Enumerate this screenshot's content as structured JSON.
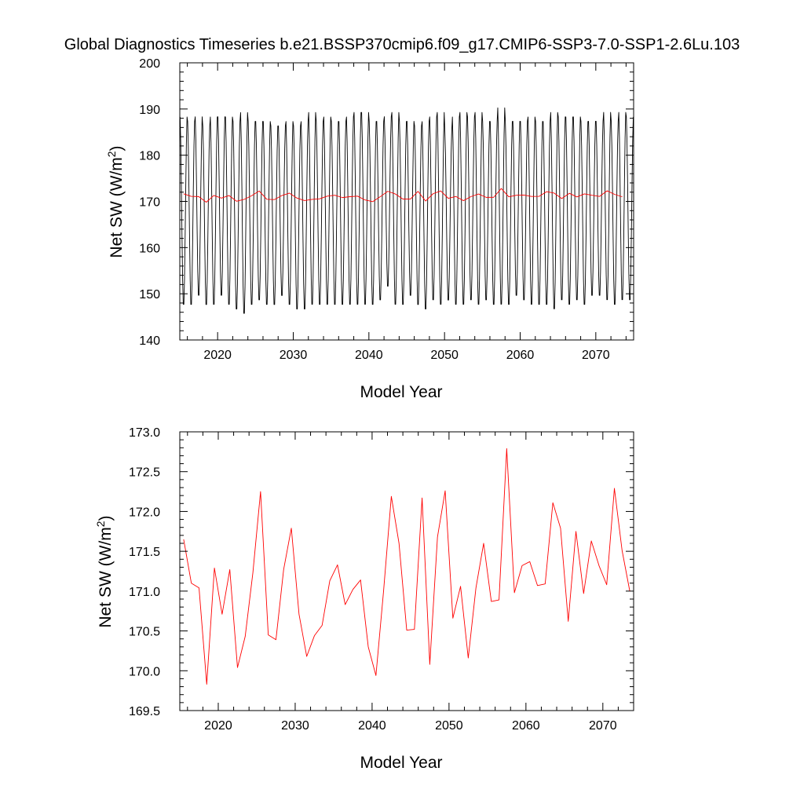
{
  "title": "Global Diagnostics Timeseries b.e21.BSSP370cmip6.f09_g17.CMIP6-SSP3-7.0-SSP1-2.6Lu.103",
  "colors": {
    "monthly": "#000000",
    "annual": "#ff0000",
    "axis": "#000000"
  },
  "chart_data": [
    {
      "type": "line",
      "panel": "top",
      "xlabel": "Model Year",
      "ylabel_main": "Net SW (W/m",
      "ylabel_sup": "2",
      "ylabel_close": ")",
      "xlim": [
        2015,
        2075
      ],
      "ylim": [
        140,
        200
      ],
      "x_ticks": [
        2020,
        2030,
        2040,
        2050,
        2060,
        2070
      ],
      "x_tick_labels": [
        "2020",
        "2030",
        "2040",
        "2050",
        "2060",
        "2070"
      ],
      "y_ticks": [
        140,
        150,
        160,
        170,
        180,
        190,
        200
      ],
      "y_tick_labels": [
        "140",
        "150",
        "160",
        "170",
        "180",
        "190",
        "200"
      ],
      "series": [
        {
          "name": "monthly",
          "color": "#000000",
          "start_year": 2015.04,
          "years": 60,
          "annual_max": [
            189,
            188,
            189,
            187,
            189,
            189,
            189,
            188,
            190,
            188,
            188,
            188,
            187,
            187,
            188,
            187,
            188,
            190,
            188,
            189,
            188,
            188,
            189,
            190,
            190,
            188,
            188,
            189,
            190,
            188,
            188,
            187,
            188,
            189,
            190,
            186,
            189,
            190,
            189,
            190,
            188,
            188,
            191,
            188,
            188,
            188,
            189,
            188,
            188,
            190,
            189,
            189,
            189,
            188,
            188,
            188,
            190,
            188,
            190,
            189
          ],
          "annual_min": [
            147,
            147,
            149,
            147,
            147,
            149,
            147,
            146,
            145,
            147,
            148,
            147,
            147,
            149,
            147,
            146,
            146,
            147,
            147,
            147,
            147,
            147,
            147,
            147,
            147,
            147,
            148,
            151,
            147,
            147,
            149,
            147,
            146,
            148,
            147,
            148,
            147,
            147,
            148,
            147,
            148,
            147,
            147,
            147,
            149,
            148,
            147,
            147,
            147,
            146,
            148,
            147,
            148,
            147,
            149,
            149,
            148,
            147,
            148,
            148
          ]
        },
        {
          "name": "annual mean",
          "color": "#ff0000",
          "x": [
            2015.5,
            2016.5,
            2017.5,
            2018.5,
            2019.5,
            2020.5,
            2021.5,
            2022.5,
            2023.5,
            2024.5,
            2025.5,
            2026.5,
            2027.5,
            2028.5,
            2029.5,
            2030.5,
            2031.5,
            2032.5,
            2033.5,
            2034.5,
            2035.5,
            2036.5,
            2037.5,
            2038.5,
            2039.5,
            2040.5,
            2041.5,
            2042.5,
            2043.5,
            2044.5,
            2045.5,
            2046.5,
            2047.5,
            2048.5,
            2049.5,
            2050.5,
            2051.5,
            2052.5,
            2053.5,
            2054.5,
            2055.5,
            2056.5,
            2057.5,
            2058.5,
            2059.5,
            2060.5,
            2061.5,
            2062.5,
            2063.5,
            2064.5,
            2065.5,
            2066.5,
            2067.5,
            2068.5,
            2069.5,
            2070.5,
            2071.5,
            2072.5,
            2073.5
          ],
          "values": [
            171.65,
            171.1,
            171.04,
            169.83,
            171.29,
            170.71,
            171.27,
            170.04,
            170.43,
            171.23,
            172.25,
            170.45,
            170.39,
            171.27,
            171.79,
            170.71,
            170.18,
            170.44,
            170.57,
            171.13,
            171.33,
            170.83,
            171.02,
            171.14,
            170.3,
            169.94,
            171.01,
            172.19,
            171.6,
            170.51,
            170.52,
            172.17,
            170.08,
            171.68,
            172.26,
            170.66,
            171.06,
            170.16,
            171.04,
            171.6,
            170.87,
            170.89,
            172.79,
            170.98,
            171.32,
            171.37,
            171.07,
            171.09,
            172.11,
            171.79,
            170.62,
            171.75,
            170.97,
            171.63,
            171.32,
            171.08,
            172.29,
            171.51,
            171.0
          ]
        }
      ]
    },
    {
      "type": "line",
      "panel": "bottom",
      "xlabel": "Model Year",
      "ylabel_main": "Net SW (W/m",
      "ylabel_sup": "2",
      "ylabel_close": ")",
      "xlim": [
        2015,
        2074
      ],
      "ylim": [
        169.5,
        173.0
      ],
      "x_ticks": [
        2020,
        2030,
        2040,
        2050,
        2060,
        2070
      ],
      "x_tick_labels": [
        "2020",
        "2030",
        "2040",
        "2050",
        "2060",
        "2070"
      ],
      "y_ticks": [
        169.5,
        170.0,
        170.5,
        171.0,
        171.5,
        172.0,
        172.5,
        173.0
      ],
      "y_tick_labels": [
        "169.5",
        "170.0",
        "170.5",
        "171.0",
        "171.5",
        "172.0",
        "172.5",
        "173.0"
      ],
      "series": [
        {
          "name": "annual mean",
          "color": "#ff0000",
          "x": [
            2015.5,
            2016.5,
            2017.5,
            2018.5,
            2019.5,
            2020.5,
            2021.5,
            2022.5,
            2023.5,
            2024.5,
            2025.5,
            2026.5,
            2027.5,
            2028.5,
            2029.5,
            2030.5,
            2031.5,
            2032.5,
            2033.5,
            2034.5,
            2035.5,
            2036.5,
            2037.5,
            2038.5,
            2039.5,
            2040.5,
            2041.5,
            2042.5,
            2043.5,
            2044.5,
            2045.5,
            2046.5,
            2047.5,
            2048.5,
            2049.5,
            2050.5,
            2051.5,
            2052.5,
            2053.5,
            2054.5,
            2055.5,
            2056.5,
            2057.5,
            2058.5,
            2059.5,
            2060.5,
            2061.5,
            2062.5,
            2063.5,
            2064.5,
            2065.5,
            2066.5,
            2067.5,
            2068.5,
            2069.5,
            2070.5,
            2071.5,
            2072.5,
            2073.5
          ],
          "values": [
            171.65,
            171.1,
            171.04,
            169.83,
            171.29,
            170.71,
            171.27,
            170.04,
            170.43,
            171.23,
            172.25,
            170.45,
            170.39,
            171.27,
            171.79,
            170.71,
            170.18,
            170.44,
            170.57,
            171.13,
            171.33,
            170.83,
            171.02,
            171.14,
            170.3,
            169.94,
            171.01,
            172.19,
            171.6,
            170.51,
            170.52,
            172.17,
            170.08,
            171.68,
            172.26,
            170.66,
            171.06,
            170.16,
            171.04,
            171.6,
            170.87,
            170.89,
            172.79,
            170.98,
            171.32,
            171.37,
            171.07,
            171.09,
            172.11,
            171.79,
            170.62,
            171.75,
            170.97,
            171.63,
            171.32,
            171.08,
            172.29,
            171.51,
            171.0
          ]
        }
      ]
    }
  ]
}
